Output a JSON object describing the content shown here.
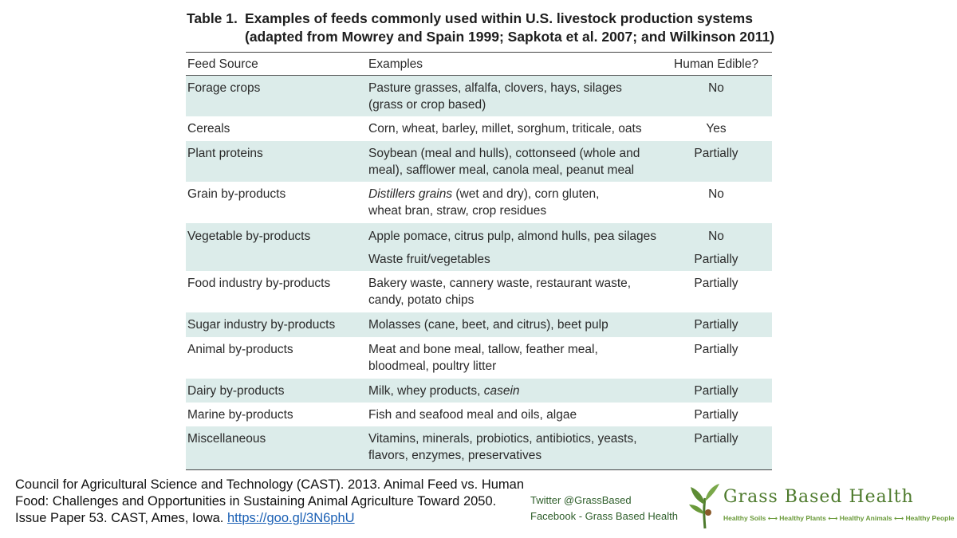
{
  "title": {
    "label": "Table 1.",
    "line1": "Examples of feeds commonly used within U.S. livestock production systems",
    "line2": "(adapted from Mowrey and Spain 1999; Sapkota et al. 2007; and Wilkinson 2011)"
  },
  "table": {
    "headers": [
      "Feed Source",
      "Examples",
      "Human Edible?"
    ],
    "rows": [
      {
        "source": "Forage crops",
        "examples": [
          "Pasture grasses, alfalfa, clovers, hays, silages",
          "(grass or crop based)"
        ],
        "edible": "No"
      },
      {
        "source": "Cereals",
        "examples": [
          "Corn, wheat, barley, millet, sorghum, triticale, oats"
        ],
        "edible": "Yes"
      },
      {
        "source": "Plant proteins",
        "examples": [
          "Soybean (meal and hulls), cottonseed (whole and",
          "meal), safflower meal, canola meal, peanut meal"
        ],
        "edible": "Partially"
      },
      {
        "source": "Grain by-products",
        "examples_italic": "Distillers grains",
        "examples_rest": " (wet and dry), corn gluten,",
        "examples2": "wheat bran, straw, crop residues",
        "edible": "No"
      },
      {
        "source": "Vegetable by-products",
        "examples_a": "Apple pomace, citrus pulp, almond hulls, pea silages",
        "edible_a": "No",
        "examples_b": "Waste fruit/vegetables",
        "edible_b": "Partially"
      },
      {
        "source": "Food industry by-products",
        "examples": [
          "Bakery waste, cannery waste, restaurant waste,",
          "candy, potato chips"
        ],
        "edible": "Partially"
      },
      {
        "source": "Sugar industry by-products",
        "examples": [
          "Molasses (cane, beet, and citrus), beet pulp"
        ],
        "edible": "Partially"
      },
      {
        "source": "Animal by-products",
        "examples": [
          "Meat and bone meal, tallow, feather meal,",
          "bloodmeal, poultry litter"
        ],
        "edible": "Partially"
      },
      {
        "source": "Dairy by-products",
        "examples_plain": "Milk, whey products, ",
        "examples_italic": "casein",
        "edible": "Partially"
      },
      {
        "source": "Marine by-products",
        "examples": [
          "Fish and seafood meal and oils, algae"
        ],
        "edible": "Partially"
      },
      {
        "source": "Miscellaneous",
        "examples": [
          "Vitamins, minerals, probiotics, antibiotics, yeasts,",
          "flavors, enzymes, preservatives"
        ],
        "edible": "Partially"
      }
    ]
  },
  "citation": {
    "text": "Council for Agricultural Science and Technology (CAST). 2013. Animal Feed vs. Human Food: Challenges and Opportunities in Sustaining Animal Agriculture Toward 2050. Issue Paper 53. CAST, Ames, Iowa. ",
    "link": "https://goo.gl/3N6phU"
  },
  "social": {
    "twitter": "Twitter @GrassBased",
    "facebook": "Facebook - Grass Based Health"
  },
  "logo": {
    "name": "Grass Based Health",
    "tagline": "Healthy Soils ⟷ Healthy Plants ⟷ Healthy Animals ⟷ Healthy People"
  },
  "colors": {
    "row_shade": "#dcecea",
    "link": "#1a5fb4",
    "brand_green": "#4d7a2c"
  }
}
